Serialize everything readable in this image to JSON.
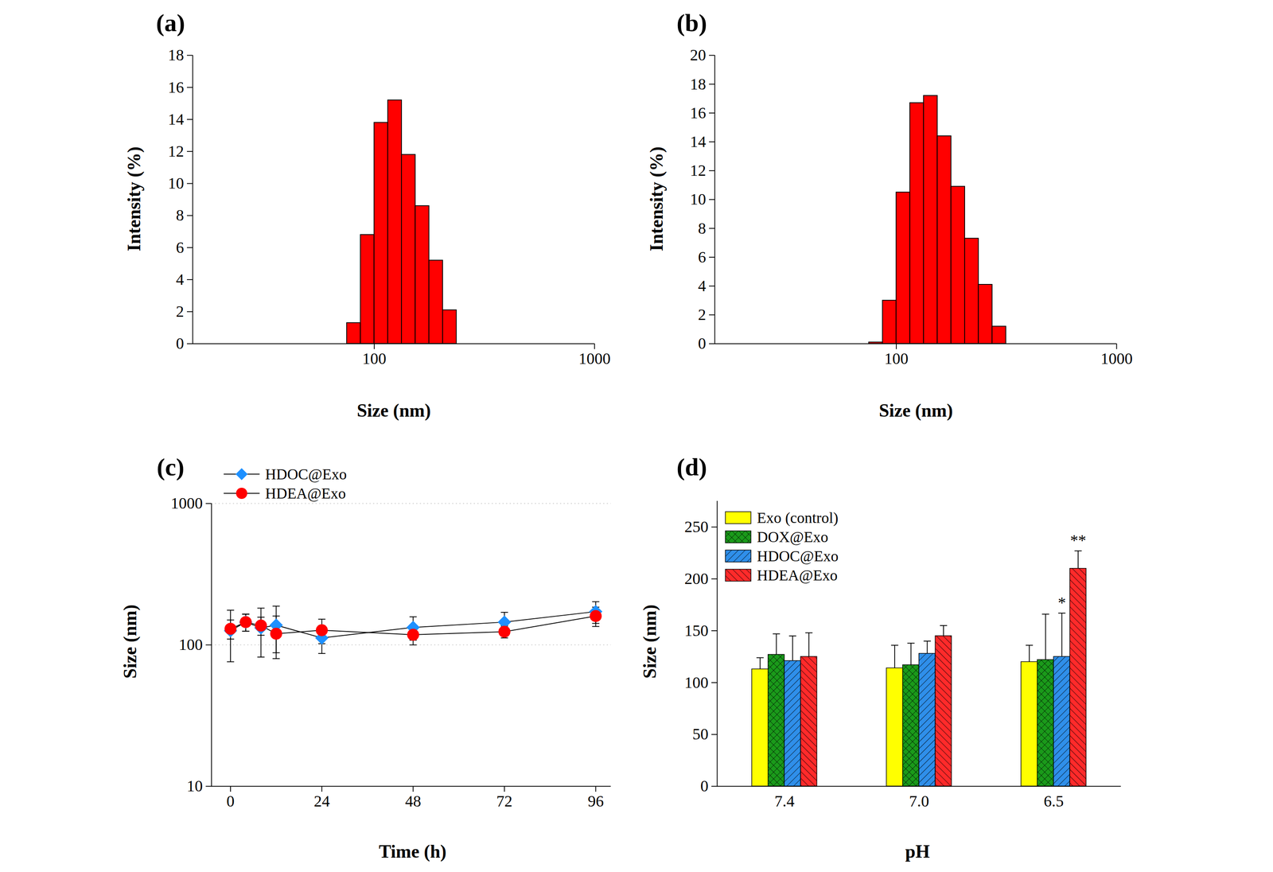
{
  "chart_data": [
    {
      "type": "histogram",
      "title": "(a)",
      "x_label": "Size (nm)",
      "y_label": "Intensity (%)",
      "bins": [
        75.1,
        86.7,
        100,
        115.4,
        133.2,
        153.7,
        177.4,
        204.7,
        236.2
      ],
      "values": [
        1.3,
        6.8,
        13.8,
        15.2,
        11.8,
        8.6,
        5.2,
        2.1
      ],
      "color": "#ff0000",
      "log": "x",
      "xlim": [
        15,
        1000
      ],
      "xticks": [
        100,
        1000
      ],
      "ylim": [
        0,
        18
      ],
      "yticks": [
        0,
        2,
        4,
        6,
        8,
        10,
        12,
        14,
        16,
        18
      ]
    },
    {
      "type": "histogram",
      "title": "(b)",
      "x_label": "Size (nm)",
      "y_label": "Intensity (%)",
      "bins": [
        75.1,
        86.7,
        100,
        115.4,
        133.2,
        153.7,
        177.4,
        204.7,
        236.2,
        272.6,
        314.6
      ],
      "values": [
        0.1,
        3.0,
        10.5,
        16.7,
        17.2,
        14.4,
        10.9,
        7.3,
        4.1,
        1.2
      ],
      "color": "#ff0000",
      "log": "x",
      "xlim": [
        15,
        1000
      ],
      "xticks": [
        100,
        1000
      ],
      "ylim": [
        0,
        20
      ],
      "yticks": [
        0,
        2,
        4,
        6,
        8,
        10,
        12,
        14,
        16,
        18,
        20
      ]
    },
    {
      "type": "line",
      "title": "(c)",
      "x_label": "Time (h)",
      "y_label": "Size (nm)",
      "x": [
        0,
        4,
        8,
        12,
        24,
        48,
        72,
        96
      ],
      "series": [
        {
          "name": "HDOC@Exo",
          "color": "#1e90ff",
          "marker": "diamond",
          "values": [
            126,
            145,
            132,
            138,
            112,
            133,
            145,
            172
          ],
          "errors": [
            50,
            20,
            50,
            50,
            25,
            25,
            25,
            30
          ]
        },
        {
          "name": "HDEA@Exo",
          "color": "#ff0000",
          "marker": "circle",
          "values": [
            130,
            145,
            137,
            120,
            127,
            118,
            124,
            160
          ],
          "errors": [
            20,
            20,
            20,
            40,
            25,
            18,
            12,
            25
          ]
        }
      ],
      "log": "y",
      "grid": true,
      "legend": "top-left",
      "xlim": [
        -5,
        100
      ],
      "xticks": [
        0,
        24,
        48,
        72,
        96
      ],
      "ylim": [
        10,
        1000
      ],
      "yticks": [
        10,
        100,
        1000
      ]
    },
    {
      "type": "bar",
      "title": "(d)",
      "x_label": "pH",
      "y_label": "Size (nm)",
      "categories": [
        "7.4",
        "7.0",
        "6.5"
      ],
      "series": [
        {
          "name": "Exo (control)",
          "color": "#ffff00",
          "values": [
            113,
            114,
            120
          ],
          "errors": [
            11,
            22,
            16
          ]
        },
        {
          "name": "DOX@Exo",
          "color": "#1a9a1a",
          "values": [
            127,
            117,
            122
          ],
          "errors": [
            20,
            21,
            44
          ]
        },
        {
          "name": "HDOC@Exo",
          "color": "#2f8fea",
          "values": [
            121,
            128,
            125
          ],
          "errors": [
            24,
            12,
            42
          ]
        },
        {
          "name": "HDEA@Exo",
          "color": "#ff2a2a",
          "values": [
            125,
            145,
            210
          ],
          "errors": [
            23,
            10,
            17
          ]
        }
      ],
      "annotations": [
        {
          "text": "*",
          "category": "6.5",
          "series": "HDOC@Exo"
        },
        {
          "text": "**",
          "category": "6.5",
          "series": "HDEA@Exo"
        }
      ],
      "legend": "top-left",
      "ylim": [
        0,
        275
      ],
      "yticks": [
        0,
        50,
        100,
        150,
        200,
        250
      ]
    }
  ]
}
